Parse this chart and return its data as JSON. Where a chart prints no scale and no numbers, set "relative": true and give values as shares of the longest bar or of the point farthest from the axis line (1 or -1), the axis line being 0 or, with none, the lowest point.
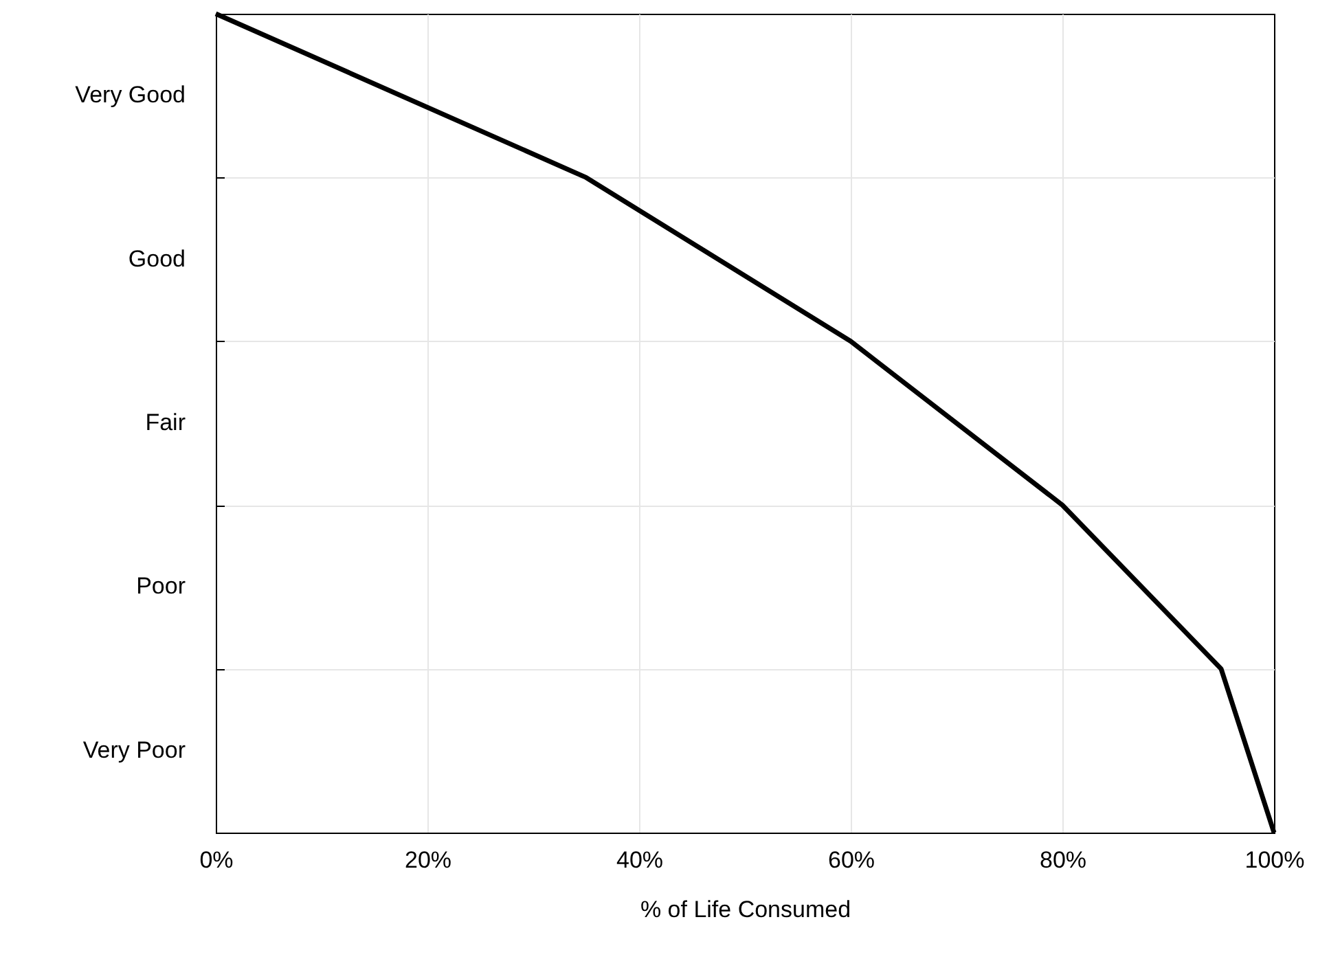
{
  "chart_data": {
    "type": "line",
    "xlabel": "% of Life Consumed",
    "x": [
      0,
      35,
      60,
      80,
      95,
      100
    ],
    "series": [
      {
        "color": "#000000",
        "values": [
          1,
          0.8,
          0.6,
          0.4,
          0.2,
          0
        ]
      }
    ],
    "relative": true,
    "annotations": [
      "Very Good",
      "Good",
      "Fair",
      "Poor",
      "Very Poor"
    ],
    "xlim": [
      0,
      100
    ],
    "xticks": [
      {
        "value": 0,
        "label": "0%"
      },
      {
        "value": 20,
        "label": "20%"
      },
      {
        "value": 40,
        "label": "40%"
      },
      {
        "value": 60,
        "label": "60%"
      },
      {
        "value": 80,
        "label": "80%"
      },
      {
        "value": 100,
        "label": "100%"
      }
    ],
    "grid": true,
    "marker": "none",
    "line_style": "solid"
  }
}
